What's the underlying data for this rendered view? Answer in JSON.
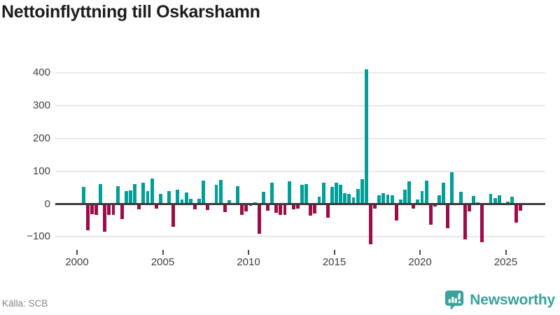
{
  "title": "Nettoinflyttning till Oskarshamn",
  "footer": {
    "source": "Källa: SCB",
    "logo_text": "Newsworthy"
  },
  "colors": {
    "positive_bar": "#00a099",
    "negative_bar": "#9c0d49",
    "zero_line": "#3b3b3b",
    "gridline": "#e9e9e9",
    "axis_text": "#3f3f3f",
    "title_text": "#1d1d1b",
    "source_text": "#85858d",
    "brand_teal": "#3aa29c"
  },
  "chart_data": {
    "type": "bar",
    "title": "Nettoinflyttning till Oskarshamn",
    "frequency": "quarterly",
    "start_period": "2000 Q1",
    "end_period": "2025 Q4",
    "x_ticks": [
      2000,
      2005,
      2010,
      2015,
      2020,
      2025
    ],
    "y_ticks": [
      -100,
      0,
      100,
      200,
      300,
      400
    ],
    "ylim": [
      -130,
      441
    ],
    "grid": true,
    "legend": false,
    "values": [
      4,
      53,
      -81,
      -31,
      -33,
      61,
      -84,
      -33,
      -33,
      54,
      -45,
      40,
      41,
      61,
      -17,
      66,
      39,
      79,
      -13,
      32,
      -4,
      40,
      -69,
      43,
      14,
      36,
      15,
      -15,
      15,
      72,
      -19,
      0,
      59,
      74,
      -24,
      11,
      0,
      54,
      -33,
      -22,
      -5,
      6,
      -91,
      38,
      -21,
      66,
      -26,
      -33,
      -33,
      69,
      -16,
      -14,
      59,
      61,
      -35,
      -29,
      22,
      66,
      -42,
      53,
      66,
      59,
      33,
      31,
      21,
      47,
      76,
      412,
      -122,
      -14,
      26,
      33,
      29,
      27,
      -50,
      13,
      43,
      70,
      -14,
      13,
      40,
      72,
      -64,
      -8,
      26,
      65,
      -73,
      97,
      0,
      38,
      -108,
      -22,
      24,
      6,
      -117,
      0,
      31,
      18,
      27,
      0,
      8,
      22,
      -57,
      -21
    ]
  }
}
